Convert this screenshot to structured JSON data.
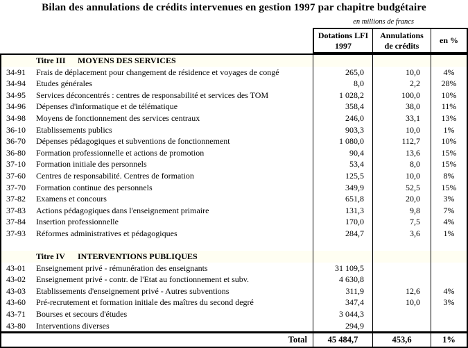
{
  "title": "Bilan des annulations de crédits intervenues en gestion 1997 par chapitre budgétaire",
  "unit_note": "en millions de francs",
  "columns": {
    "dotations_line1": "Dotations LFI",
    "dotations_line2": "1997",
    "annulations_line1": "Annulations",
    "annulations_line2": "de crédits",
    "pct": "en %"
  },
  "colors": {
    "section_background": "#FFFEF2",
    "border": "#000000"
  },
  "table": {
    "rows": [
      {
        "type": "section",
        "prefix": "Titre III",
        "label": "MOYENS DES SERVICES",
        "dotation": "",
        "annulation": "",
        "pct": ""
      },
      {
        "type": "data",
        "code": "34-91",
        "label": "Frais de déplacement pour changement de résidence et voyages de congé",
        "dotation": "265,0",
        "annulation": "10,0",
        "pct": "4%"
      },
      {
        "type": "data",
        "code": "34-94",
        "label": "Etudes générales",
        "dotation": "8,0",
        "annulation": "2,2",
        "pct": "28%"
      },
      {
        "type": "data",
        "code": "34-95",
        "label": "Services déconcentrés : centres de responsabilité et services des TOM",
        "dotation": "1 028,2",
        "annulation": "100,0",
        "pct": "10%"
      },
      {
        "type": "data",
        "code": "34-96",
        "label": "Dépenses d'informatique et de télématique",
        "dotation": "358,4",
        "annulation": "38,0",
        "pct": "11%"
      },
      {
        "type": "data",
        "code": "34-98",
        "label": "Moyens de fonctionnement des services centraux",
        "dotation": "246,0",
        "annulation": "33,1",
        "pct": "13%"
      },
      {
        "type": "data",
        "code": "36-10",
        "label": "Etablissements publics",
        "dotation": "903,3",
        "annulation": "10,0",
        "pct": "1%"
      },
      {
        "type": "data",
        "code": "36-70",
        "label": "Dépenses pédagogiques et subventions de fonctionnement",
        "dotation": "1 080,0",
        "annulation": "112,7",
        "pct": "10%"
      },
      {
        "type": "data",
        "code": "36-80",
        "label": "Formation professionnelle et actions de promotion",
        "dotation": "90,4",
        "annulation": "13,6",
        "pct": "15%"
      },
      {
        "type": "data",
        "code": "37-10",
        "label": "Formation initiale des personnels",
        "dotation": "53,4",
        "annulation": "8,0",
        "pct": "15%"
      },
      {
        "type": "data",
        "code": "37-60",
        "label": "Centres de responsabilité. Centres de formation",
        "dotation": "125,5",
        "annulation": "10,0",
        "pct": "8%"
      },
      {
        "type": "data",
        "code": "37-70",
        "label": "Formation continue des personnels",
        "dotation": "349,9",
        "annulation": "52,5",
        "pct": "15%"
      },
      {
        "type": "data",
        "code": "37-82",
        "label": "Examens et concours",
        "dotation": "651,8",
        "annulation": "20,0",
        "pct": "3%"
      },
      {
        "type": "data",
        "code": "37-83",
        "label": "Actions pédagogiques dans l'enseignement primaire",
        "dotation": "131,3",
        "annulation": "9,8",
        "pct": "7%"
      },
      {
        "type": "data",
        "code": "37-84",
        "label": "Insertion professionnelle",
        "dotation": "170,0",
        "annulation": "7,5",
        "pct": "4%"
      },
      {
        "type": "data",
        "code": "37-93",
        "label": "Réformes administratives et pédagogiques",
        "dotation": "284,7",
        "annulation": "3,6",
        "pct": "1%"
      },
      {
        "type": "blank",
        "label": "",
        "dotation": "",
        "annulation": "",
        "pct": ""
      },
      {
        "type": "section",
        "prefix": "Titre IV",
        "label": "INTERVENTIONS PUBLIQUES",
        "dotation": "",
        "annulation": "",
        "pct": ""
      },
      {
        "type": "data",
        "code": "43-01",
        "label": "Enseignement privé - rémunération des enseignants",
        "dotation": "31 109,5",
        "annulation": "",
        "pct": ""
      },
      {
        "type": "data",
        "code": "43-02",
        "label": "Enseignement privé - contr. de l'Etat au fonctionnement et subv.",
        "dotation": "4 630,8",
        "annulation": "",
        "pct": ""
      },
      {
        "type": "data",
        "code": "43-03",
        "label": "Etablissements d'enseignement privé - Autres subventions",
        "dotation": "311,9",
        "annulation": "12,6",
        "pct": "4%"
      },
      {
        "type": "data",
        "code": "43-60",
        "label": "Pré-recrutement et formation initiale des maîtres du second degré",
        "dotation": "347,4",
        "annulation": "10,0",
        "pct": "3%"
      },
      {
        "type": "data",
        "code": "43-71",
        "label": "Bourses et secours d'études",
        "dotation": "3 044,3",
        "annulation": "",
        "pct": ""
      },
      {
        "type": "data",
        "code": "43-80",
        "label": "Interventions diverses",
        "dotation": "294,9",
        "annulation": "",
        "pct": ""
      }
    ],
    "total": {
      "label": "Total",
      "dotation": "45 484,7",
      "annulation": "453,6",
      "pct": "1%"
    }
  }
}
